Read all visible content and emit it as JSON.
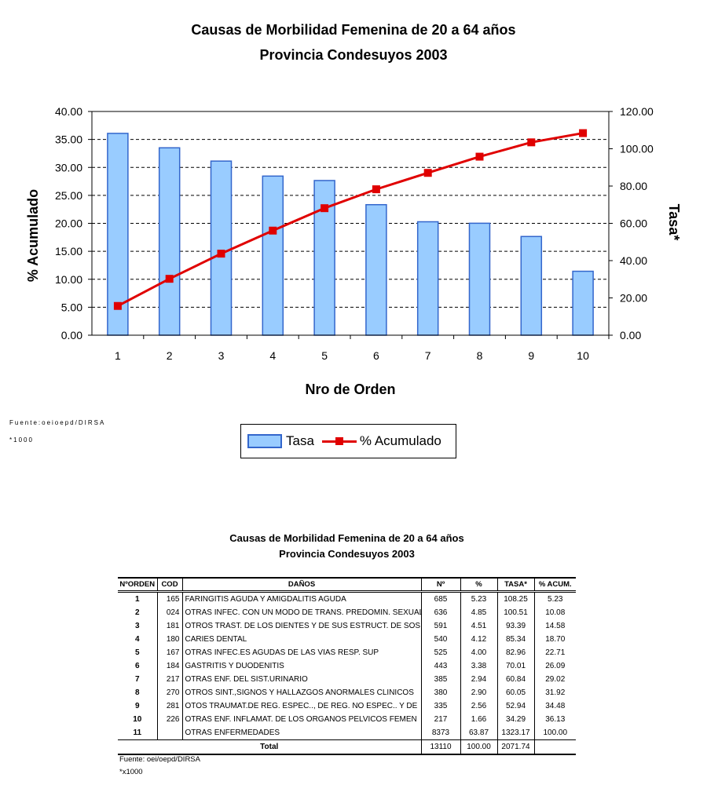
{
  "chart_data": {
    "type": "bar+line",
    "title": "Causas de Morbilidad Femenina de 20 a 64 años",
    "subtitle": "Provincia Condesuyos 2003",
    "xlabel": "Nro de Orden",
    "ylabel_left": "% Acumulado",
    "ylabel_right": "Tasa*",
    "categories": [
      "1",
      "2",
      "3",
      "4",
      "5",
      "6",
      "7",
      "8",
      "9",
      "10"
    ],
    "yticks_left": [
      "0.00",
      "5.00",
      "10.00",
      "15.00",
      "20.00",
      "25.00",
      "30.00",
      "35.00",
      "40.00"
    ],
    "yticks_right": [
      "0.00",
      "20.00",
      "40.00",
      "60.00",
      "80.00",
      "100.00",
      "120.00"
    ],
    "ylim_left": [
      0,
      40
    ],
    "ylim_right": [
      0,
      120
    ],
    "grid": true,
    "series": [
      {
        "name": "Tasa",
        "type": "bar",
        "axis": "right",
        "color": "#99ccff",
        "values": [
          108.25,
          100.51,
          93.39,
          85.34,
          82.96,
          70.01,
          60.84,
          60.05,
          52.94,
          34.29
        ]
      },
      {
        "name": "% Acumulado",
        "type": "line",
        "axis": "left",
        "color": "#e00000",
        "values": [
          5.23,
          10.08,
          14.58,
          18.7,
          22.71,
          26.09,
          29.02,
          31.92,
          34.48,
          36.13
        ]
      }
    ],
    "legend_position": "bottom",
    "notes": [
      "Fuente:oeioepd/DIRSA",
      "*1000"
    ]
  },
  "table": {
    "title": "Causas de Morbilidad Femenina de 20 a 64 años",
    "subtitle": "Provincia Condesuyos 2003",
    "headers": [
      "NºORDEN",
      "COD",
      "DAÑOS",
      "Nº",
      "%",
      "TASA*",
      "% ACUM."
    ],
    "rows": [
      [
        "1",
        "165",
        "FARINGITIS AGUDA Y AMIGDALITIS AGUDA",
        "685",
        "5.23",
        "108.25",
        "5.23"
      ],
      [
        "2",
        "024",
        "OTRAS INFEC. CON UN MODO DE TRANS. PREDOMIN. SEXUAL",
        "636",
        "4.85",
        "100.51",
        "10.08"
      ],
      [
        "3",
        "181",
        "OTROS TRAST. DE LOS DIENTES Y DE SUS ESTRUCT. DE SOS",
        "591",
        "4.51",
        "93.39",
        "14.58"
      ],
      [
        "4",
        "180",
        "CARIES DENTAL",
        "540",
        "4.12",
        "85.34",
        "18.70"
      ],
      [
        "5",
        "167",
        "OTRAS INFEC.ES AGUDAS DE LAS VIAS RESP. SUP",
        "525",
        "4.00",
        "82.96",
        "22.71"
      ],
      [
        "6",
        "184",
        "GASTRITIS Y DUODENITIS",
        "443",
        "3.38",
        "70.01",
        "26.09"
      ],
      [
        "7",
        "217",
        "OTRAS ENF. DEL SIST.URINARIO",
        "385",
        "2.94",
        "60.84",
        "29.02"
      ],
      [
        "8",
        "270",
        "OTROS SINT.,SIGNOS Y HALLAZGOS ANORMALES CLINICOS",
        "380",
        "2.90",
        "60.05",
        "31.92"
      ],
      [
        "9",
        "281",
        "OTOS TRAUMAT.DE REG. ESPEC.., DE REG. NO ESPEC.. Y DE",
        "335",
        "2.56",
        "52.94",
        "34.48"
      ],
      [
        "10",
        "226",
        "OTRAS ENF. INFLAMAT. DE LOS ORGANOS PELVICOS FEMEN",
        "217",
        "1.66",
        "34.29",
        "36.13"
      ],
      [
        "11",
        "",
        "OTRAS ENFERMEDADES",
        "8373",
        "63.87",
        "1323.17",
        "100.00"
      ]
    ],
    "total": {
      "label": "Total",
      "n": "13110",
      "pct": "100.00",
      "tasa": "2071.74"
    },
    "source": "Fuente: oei/oepd/DIRSA",
    "note": "*x1000"
  }
}
